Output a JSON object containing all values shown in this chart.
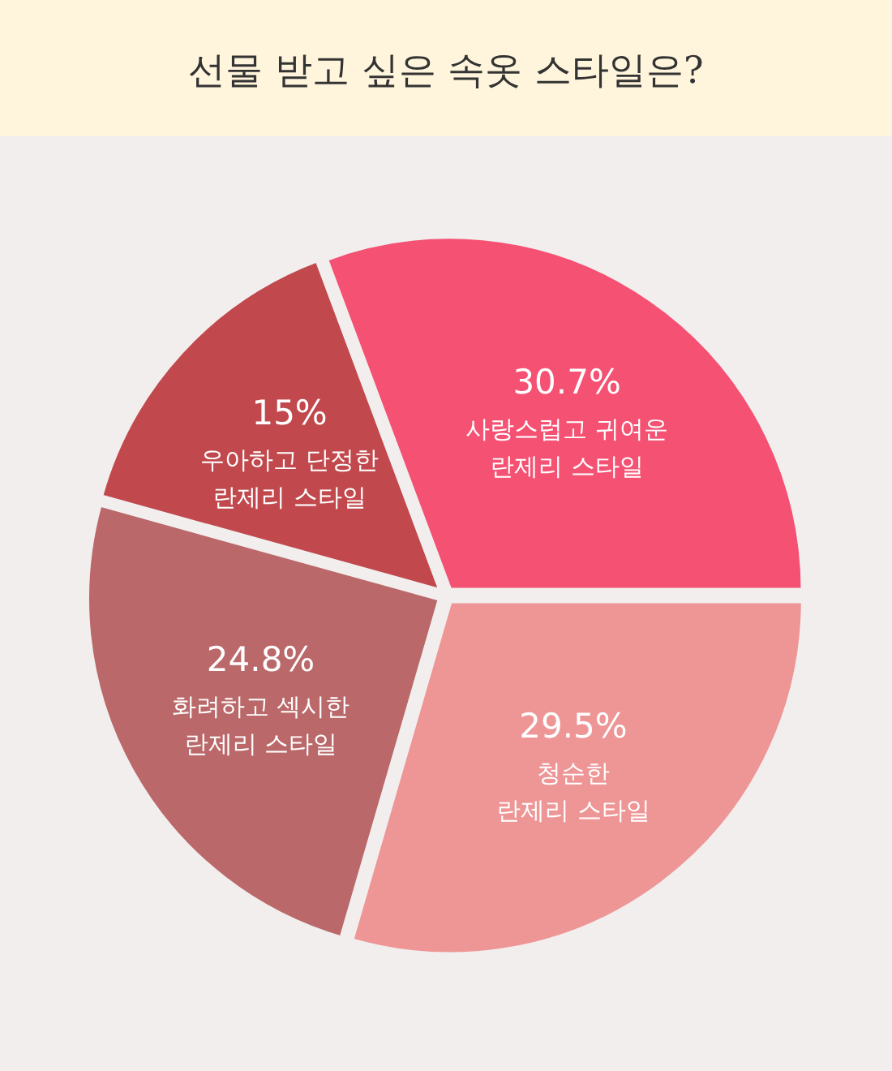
{
  "chart_data": {
    "type": "pie",
    "title": "선물 받고 싶은 속옷 스타일은?",
    "categories": [
      "사랑스럽고 귀여운 란제리 스타일",
      "청순한 란제리 스타일",
      "화려하고 섹시한 란제리 스타일",
      "우아하고 단정한 란제리 스타일"
    ],
    "values": [
      30.7,
      29.5,
      24.8,
      15
    ],
    "colors": [
      "#f45173",
      "#ee9596",
      "#ba6869",
      "#c1494d"
    ],
    "value_labels": [
      "30.7%",
      "29.5%",
      "24.8%",
      "15%"
    ]
  }
}
